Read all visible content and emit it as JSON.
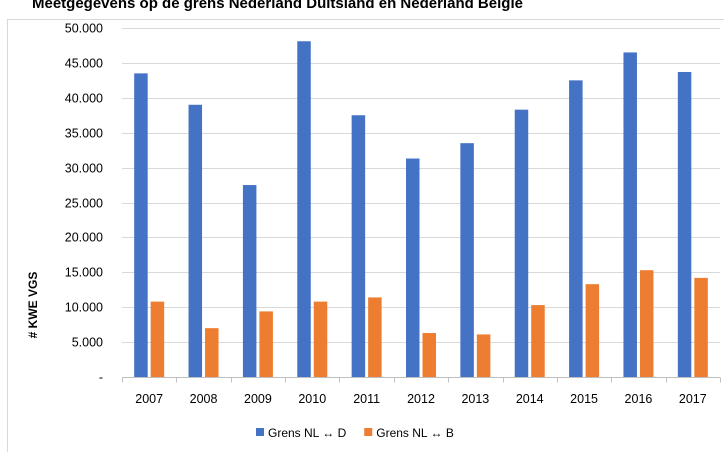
{
  "chart_data": {
    "type": "bar",
    "title": "Meetgegevens op de grens Nederland Duitsland en Nederland België",
    "xlabel": "",
    "ylabel": "# KWE VGS",
    "categories": [
      "2007",
      "2008",
      "2009",
      "2010",
      "2011",
      "2012",
      "2013",
      "2014",
      "2015",
      "2016",
      "2017"
    ],
    "series": [
      {
        "name": "Grens NL ↔ D",
        "color": "#4472C4",
        "values": [
          43500,
          39000,
          27500,
          48100,
          37500,
          31300,
          33500,
          38300,
          42500,
          46500,
          43700
        ]
      },
      {
        "name": "Grens NL ↔ B",
        "color": "#ED7D31",
        "values": [
          10800,
          7000,
          9400,
          10800,
          11400,
          6300,
          6100,
          10300,
          13300,
          15300,
          14200
        ]
      }
    ],
    "ylim": [
      0,
      50000
    ],
    "yticks": [
      0,
      5000,
      10000,
      15000,
      20000,
      25000,
      30000,
      35000,
      40000,
      45000,
      50000
    ],
    "ytick_labels": [
      "-",
      "5.000",
      "10.000",
      "15.000",
      "20.000",
      "25.000",
      "30.000",
      "35.000",
      "40.000",
      "45.000",
      "50.000"
    ],
    "grid": true,
    "legend_position": "bottom"
  }
}
